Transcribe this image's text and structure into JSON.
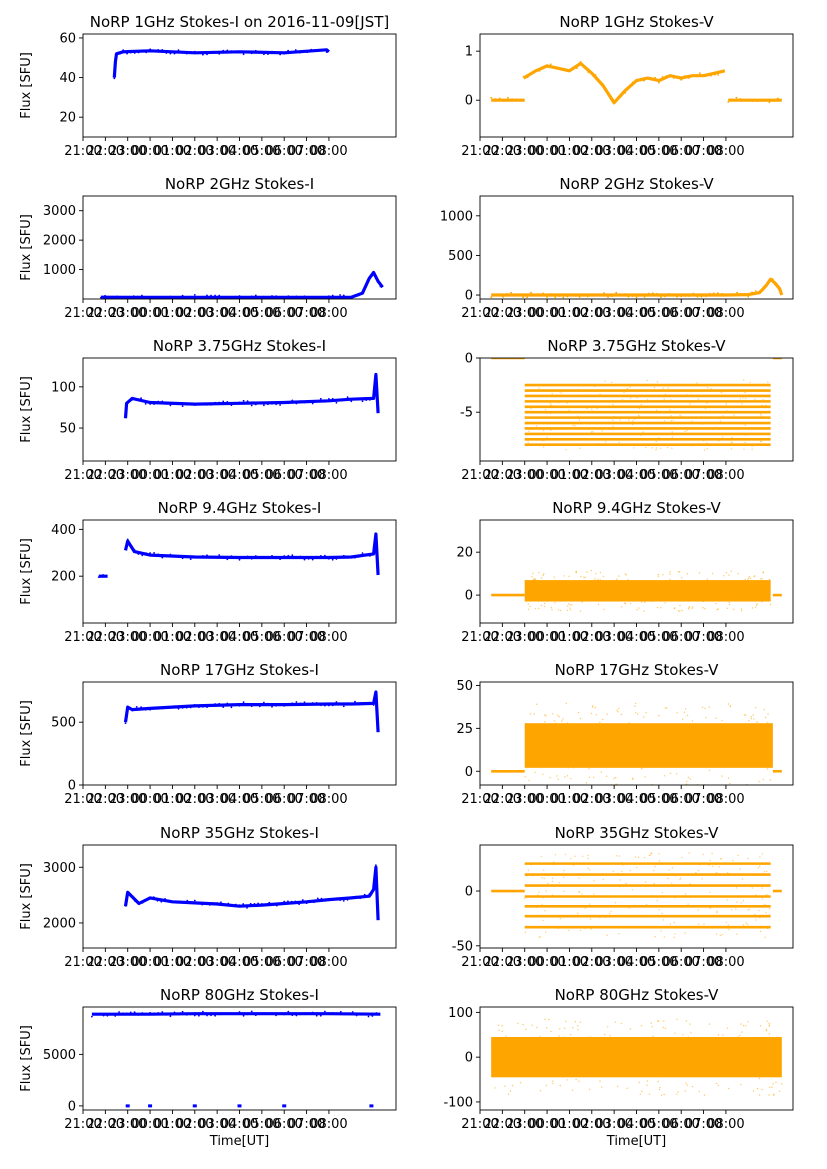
{
  "figure": {
    "xlabel": "Time[UT]",
    "xticks": [
      "21:00",
      "22:00",
      "23:00",
      "00:00",
      "01:00",
      "02:00",
      "03:00",
      "04:00",
      "05:00",
      "06:00",
      "07:00",
      "08:00"
    ],
    "colors": {
      "stokes_i": "#0000ff",
      "stokes_v": "#ffa500",
      "axis": "#000000"
    }
  },
  "chart_data": [
    {
      "type": "scatter",
      "title": "NoRP 1GHz Stokes-I on 2016-11-09[JST]",
      "ylabel": "Flux [SFU]",
      "xlabel": "",
      "ylim": [
        10,
        62
      ],
      "yticks": [
        20,
        40,
        60
      ],
      "color": "#0000ff",
      "x_range_hours": [
        -3.0,
        11.0
      ],
      "series": [
        {
          "name": "1GHz Stokes-I",
          "segments": [
            {
              "x": [
                -1.6,
                -1.55,
                -1.5,
                -1.2,
                0,
                2,
                4,
                6,
                7.9,
                8.0
              ],
              "y": [
                40,
                48,
                52,
                53,
                53.5,
                52.5,
                53,
                52.5,
                54,
                53
              ]
            }
          ]
        }
      ]
    },
    {
      "type": "scatter",
      "title": "NoRP 1GHz Stokes-V",
      "ylabel": "",
      "xlabel": "",
      "ylim": [
        -0.75,
        1.35
      ],
      "yticks": [
        0,
        1
      ],
      "color": "#ffa500",
      "x_range_hours": [
        -3.0,
        11.0
      ],
      "series": [
        {
          "name": "1GHz Stokes-V",
          "segments": [
            {
              "x": [
                -2.5,
                -1.0
              ],
              "y": [
                0,
                0
              ]
            },
            {
              "x": [
                -1.05,
                -0.5,
                0,
                0.5,
                1,
                1.5,
                2,
                2.5,
                3,
                3.5,
                4,
                4.5,
                5,
                5.5,
                6,
                6.5,
                7,
                7.5,
                7.95
              ],
              "y": [
                0.45,
                0.6,
                0.7,
                0.65,
                0.6,
                0.75,
                0.55,
                0.3,
                -0.05,
                0.2,
                0.4,
                0.45,
                0.4,
                0.5,
                0.45,
                0.5,
                0.5,
                0.55,
                0.6
              ]
            },
            {
              "x": [
                8.1,
                10.5
              ],
              "y": [
                0,
                0
              ]
            }
          ]
        }
      ]
    },
    {
      "type": "scatter",
      "title": "NoRP 2GHz Stokes-I",
      "ylabel": "Flux [SFU]",
      "xlabel": "",
      "ylim": [
        0,
        3500
      ],
      "yticks": [
        1000,
        2000,
        3000
      ],
      "color": "#0000ff",
      "x_range_hours": [
        -3.0,
        11.0
      ],
      "series": [
        {
          "name": "2GHz Stokes-I",
          "segments": [
            {
              "x": [
                -2.2,
                0,
                2,
                4,
                6,
                8,
                9.0,
                9.5,
                9.8,
                10.0,
                10.2,
                10.4
              ],
              "y": [
                60,
                55,
                55,
                55,
                55,
                55,
                60,
                200,
                700,
                900,
                600,
                400
              ]
            }
          ]
        }
      ]
    },
    {
      "type": "scatter",
      "title": "NoRP 2GHz Stokes-V",
      "ylabel": "",
      "xlabel": "",
      "ylim": [
        -50,
        1250
      ],
      "yticks": [
        0,
        500,
        1000
      ],
      "color": "#ffa500",
      "x_range_hours": [
        -3.0,
        11.0
      ],
      "series": [
        {
          "name": "2GHz Stokes-V",
          "segments": [
            {
              "x": [
                -2.5,
                0,
                2,
                4,
                6,
                8,
                9.0,
                9.5,
                9.8,
                10.0,
                10.2,
                10.4,
                10.5
              ],
              "y": [
                0,
                0,
                0,
                0,
                0,
                0,
                5,
                30,
                120,
                200,
                150,
                80,
                0
              ]
            }
          ]
        }
      ]
    },
    {
      "type": "scatter",
      "title": "NoRP 3.75GHz Stokes-I",
      "ylabel": "Flux [SFU]",
      "xlabel": "",
      "ylim": [
        10,
        135
      ],
      "yticks": [
        50,
        100
      ],
      "color": "#0000ff",
      "x_range_hours": [
        -3.0,
        11.0
      ],
      "series": [
        {
          "name": "3.75GHz Stokes-I",
          "segments": [
            {
              "x": [
                -1.1,
                -1.05,
                -0.8,
                0,
                2,
                4,
                6,
                8,
                9,
                10.0,
                10.1,
                10.2
              ],
              "y": [
                62,
                80,
                86,
                81,
                79,
                80,
                81,
                83,
                85,
                86,
                115,
                68
              ]
            }
          ]
        }
      ]
    },
    {
      "type": "scatter",
      "title": "NoRP 3.75GHz Stokes-V",
      "ylabel": "",
      "xlabel": "",
      "ylim": [
        -9.5,
        0
      ],
      "yticks": [
        -5,
        0
      ],
      "color": "#ffa500",
      "x_range_hours": [
        -3.0,
        11.0
      ],
      "series": [
        {
          "name": "3.75GHz Stokes-V",
          "band_levels": [
            -2.5,
            -3,
            -3.5,
            -4,
            -4.5,
            -5,
            -5.5,
            -6,
            -6.5,
            -7,
            -7.5,
            -8
          ],
          "band_x": [
            -1.0,
            10.0
          ],
          "baseline": {
            "x": [
              -2.5,
              -1.0,
              10.1,
              10.5
            ],
            "y": [
              0,
              0,
              0,
              0
            ]
          }
        }
      ]
    },
    {
      "type": "scatter",
      "title": "NoRP 9.4GHz Stokes-I",
      "ylabel": "Flux [SFU]",
      "xlabel": "",
      "ylim": [
        0,
        440
      ],
      "yticks": [
        200,
        400
      ],
      "color": "#0000ff",
      "x_range_hours": [
        -3.0,
        11.0
      ],
      "series": [
        {
          "name": "9.4GHz Stokes-I",
          "segments": [
            {
              "x": [
                -2.3,
                -1.9
              ],
              "y": [
                200,
                200
              ]
            },
            {
              "x": [
                -1.1,
                -1.0,
                -0.7,
                0,
                2,
                4,
                6,
                8,
                9,
                10.0,
                10.1,
                10.2
              ],
              "y": [
                310,
                350,
                305,
                290,
                282,
                280,
                280,
                280,
                282,
                295,
                380,
                205
              ]
            }
          ]
        }
      ]
    },
    {
      "type": "scatter",
      "title": "NoRP 9.4GHz Stokes-V",
      "ylabel": "",
      "xlabel": "",
      "ylim": [
        -13,
        35
      ],
      "yticks": [
        0,
        20
      ],
      "color": "#ffa500",
      "x_range_hours": [
        -3.0,
        11.0
      ],
      "series": [
        {
          "name": "9.4GHz Stokes-V",
          "center": 2,
          "half_width": 5,
          "band_x": [
            -1.0,
            10.0
          ],
          "baseline": {
            "x": [
              -2.5,
              -1.0,
              10.1,
              10.5
            ],
            "y": [
              0,
              0,
              0,
              0
            ]
          }
        }
      ]
    },
    {
      "type": "scatter",
      "title": "NoRP 17GHz Stokes-I",
      "ylabel": "Flux [SFU]",
      "xlabel": "",
      "ylim": [
        0,
        820
      ],
      "yticks": [
        0,
        500
      ],
      "color": "#0000ff",
      "x_range_hours": [
        -3.0,
        11.0
      ],
      "series": [
        {
          "name": "17GHz Stokes-I",
          "segments": [
            {
              "x": [
                -1.1,
                -1.0,
                -0.8,
                0,
                2,
                4,
                6,
                8,
                9,
                10.0,
                10.1,
                10.2
              ],
              "y": [
                500,
                620,
                600,
                610,
                630,
                640,
                640,
                645,
                645,
                650,
                740,
                420
              ]
            }
          ]
        }
      ]
    },
    {
      "type": "scatter",
      "title": "NoRP 17GHz Stokes-V",
      "ylabel": "",
      "xlabel": "",
      "ylim": [
        -8,
        52
      ],
      "yticks": [
        0,
        25,
        50
      ],
      "color": "#ffa500",
      "x_range_hours": [
        -3.0,
        11.0
      ],
      "series": [
        {
          "name": "17GHz Stokes-V",
          "center": 15,
          "half_width": 13,
          "band_x": [
            -1.0,
            10.1
          ],
          "baseline": {
            "x": [
              -2.5,
              -1.0,
              10.1,
              10.5
            ],
            "y": [
              0,
              0,
              0,
              0
            ]
          }
        }
      ]
    },
    {
      "type": "scatter",
      "title": "NoRP 35GHz Stokes-I",
      "ylabel": "Flux [SFU]",
      "xlabel": "",
      "ylim": [
        1550,
        3400
      ],
      "yticks": [
        2000,
        3000
      ],
      "color": "#0000ff",
      "x_range_hours": [
        -3.0,
        11.0
      ],
      "series": [
        {
          "name": "35GHz Stokes-I",
          "segments": [
            {
              "x": [
                -1.1,
                -1.0,
                -0.5,
                0,
                1,
                2,
                3,
                4,
                5,
                6,
                7,
                8,
                9,
                9.8,
                10.0,
                10.1,
                10.2
              ],
              "y": [
                2300,
                2550,
                2350,
                2450,
                2380,
                2360,
                2340,
                2300,
                2320,
                2350,
                2380,
                2420,
                2450,
                2480,
                2600,
                3000,
                2050
              ]
            }
          ]
        }
      ]
    },
    {
      "type": "scatter",
      "title": "NoRP 35GHz Stokes-V",
      "ylabel": "",
      "xlabel": "",
      "ylim": [
        -52,
        42
      ],
      "yticks": [
        -50,
        0
      ],
      "color": "#ffa500",
      "x_range_hours": [
        -3.0,
        11.0
      ],
      "series": [
        {
          "name": "35GHz Stokes-V",
          "band_levels": [
            25,
            15,
            5,
            -5,
            -14,
            -23,
            -33
          ],
          "band_x": [
            -1.0,
            10.0
          ],
          "baseline": {
            "x": [
              -2.5,
              -1.0,
              10.1,
              10.5
            ],
            "y": [
              0,
              0,
              0,
              0
            ]
          }
        }
      ]
    },
    {
      "type": "scatter",
      "title": "NoRP 80GHz Stokes-I",
      "ylabel": "Flux [SFU]",
      "xlabel": "Time[UT]",
      "ylim": [
        -400,
        9600
      ],
      "yticks": [
        0,
        5000
      ],
      "color": "#0000ff",
      "x_range_hours": [
        -3.0,
        11.0
      ],
      "series": [
        {
          "name": "80GHz Stokes-I",
          "segments": [
            {
              "x": [
                -2.6,
                0,
                2,
                4,
                6,
                8,
                10.3
              ],
              "y": [
                8900,
                8900,
                8950,
                8950,
                8950,
                8950,
                8900
              ]
            }
          ],
          "dropouts_x": [
            -1.0,
            0.0,
            2.0,
            4.0,
            6.0,
            9.9
          ]
        }
      ]
    },
    {
      "type": "scatter",
      "title": "NoRP 80GHz Stokes-V",
      "ylabel": "",
      "xlabel": "Time[UT]",
      "ylim": [
        -118,
        112
      ],
      "yticks": [
        -100,
        0,
        100
      ],
      "color": "#ffa500",
      "x_range_hours": [
        -3.0,
        11.0
      ],
      "series": [
        {
          "name": "80GHz Stokes-V",
          "center": 0,
          "half_width": 45,
          "band_x": [
            -2.5,
            10.5
          ]
        }
      ]
    }
  ]
}
